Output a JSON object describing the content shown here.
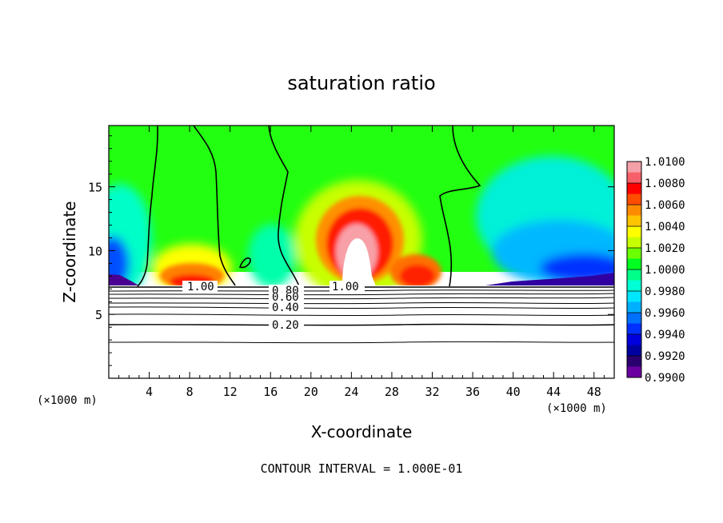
{
  "chart_data": {
    "type": "heatmap",
    "title": "saturation ratio",
    "xlabel": "X-coordinate",
    "ylabel": "Z-coordinate",
    "x_unit_left": "(×1000 m)",
    "x_unit_right": "(×1000 m)",
    "footer": "CONTOUR INTERVAL = 1.000E-01",
    "xlim": [
      0,
      50
    ],
    "ylim": [
      0,
      19.8
    ],
    "x_ticks": [
      4,
      8,
      12,
      16,
      20,
      24,
      28,
      32,
      36,
      40,
      44,
      48
    ],
    "x_tick_labels": [
      "4",
      "8",
      "12",
      "16",
      "20",
      "24",
      "28",
      "32",
      "36",
      "40",
      "44",
      "48"
    ],
    "y_ticks": [
      5,
      10,
      15
    ],
    "y_tick_labels": [
      "5",
      "10",
      "15"
    ],
    "colorbar": {
      "levels": [
        "1.0100",
        "1.0080",
        "1.0060",
        "1.0040",
        "1.0020",
        "1.0000",
        "0.9980",
        "0.9960",
        "0.9940",
        "0.9920",
        "0.9900"
      ],
      "colors": [
        "#f4a0a8",
        "#f7606a",
        "#ff0000",
        "#ff4d00",
        "#ff8c00",
        "#ffc400",
        "#ffff00",
        "#c8ff00",
        "#6cff00",
        "#00ff20",
        "#00ff88",
        "#00ffd4",
        "#00e6ff",
        "#00b0ff",
        "#0070ff",
        "#0030ff",
        "#0000dd",
        "#0000a0",
        "#2a0070",
        "#6a00a0"
      ]
    },
    "contour_labels": [
      {
        "text": "1.00",
        "x": 8.8,
        "z": 7.1
      },
      {
        "text": "1.00",
        "x": 23.8,
        "z": 7.1
      },
      {
        "text": "0.80",
        "x": 17.6,
        "z": 6.9
      },
      {
        "text": "0.60",
        "x": 17.6,
        "z": 6.3
      },
      {
        "text": "0.40",
        "x": 17.6,
        "z": 5.6
      },
      {
        "text": "0.20",
        "x": 17.6,
        "z": 4.1
      }
    ],
    "contour_lines_z": [
      7.0,
      6.8,
      6.6,
      6.3,
      5.9,
      5.5,
      4.9,
      4.3,
      2.8
    ],
    "vertical_contours_x": [
      5,
      11.5,
      17.5,
      33.5
    ]
  }
}
